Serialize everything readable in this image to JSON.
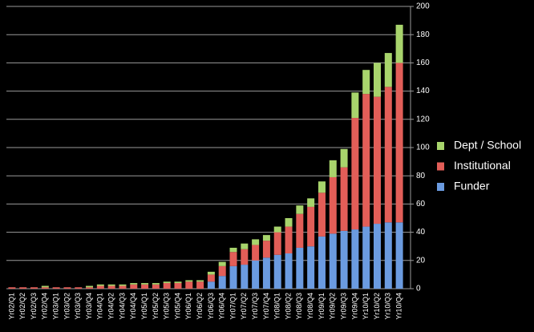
{
  "chart_data": {
    "type": "stacked_bar",
    "categories": [
      "Yr02/Q1",
      "Yr02/Q2",
      "Yr02/Q3",
      "Yr02/Q4",
      "Yr03/Q1",
      "Yr03/Q2",
      "Yr03/Q3",
      "Yr03/Q4",
      "Yr04/Q1",
      "Yr04/Q2",
      "Yr04/Q3",
      "Yr04/Q4",
      "Yr05/Q1",
      "Yr05/Q2",
      "Yr05/Q3",
      "Yr05/Q4",
      "Yr06/Q1",
      "Yr06/Q2",
      "Yr06/Q3",
      "Yr06/Q4",
      "Yr07/Q1",
      "Yr07/Q2",
      "Yr07/Q3",
      "Yr07/Q4",
      "Yr08/Q1",
      "Yr08/Q2",
      "Yr08/Q3",
      "Yr08/Q4",
      "Yr09/Q1",
      "Yr09/Q2",
      "Yr09/Q3",
      "Yr09/Q4",
      "Yr10/Q1",
      "Yr10/Q2",
      "Yr10/Q3",
      "Yr10/Q4"
    ],
    "series": [
      {
        "name": "Funder",
        "color": "#6b9be0",
        "values": [
          0,
          0,
          0,
          0,
          0,
          0,
          0,
          0,
          0,
          0,
          0,
          0,
          0,
          0,
          0,
          0,
          0,
          0,
          5,
          9,
          16,
          17,
          20,
          22,
          24,
          25,
          29,
          30,
          37,
          39,
          41,
          42,
          44,
          46,
          47,
          47
        ]
      },
      {
        "name": "Institutional",
        "color": "#e25e58",
        "values": [
          1,
          1,
          1,
          1,
          1,
          1,
          1,
          1,
          2,
          2,
          2,
          3,
          3,
          3,
          4,
          4,
          5,
          5,
          5,
          7,
          10,
          11,
          11,
          12,
          16,
          19,
          24,
          28,
          31,
          40,
          45,
          79,
          94,
          90,
          96,
          113
        ]
      },
      {
        "name": "Dept / School",
        "color": "#a8d46c",
        "values": [
          0,
          0,
          0,
          1,
          0,
          0,
          0,
          1,
          1,
          1,
          1,
          1,
          1,
          1,
          1,
          1,
          1,
          1,
          2,
          3,
          3,
          4,
          4,
          4,
          4,
          6,
          6,
          6,
          8,
          12,
          13,
          18,
          17,
          24,
          24,
          27
        ]
      }
    ],
    "ylim": [
      0,
      200
    ],
    "yticks": [
      0,
      20,
      40,
      60,
      80,
      100,
      120,
      140,
      160,
      180,
      200
    ],
    "grid": true,
    "legend": "right"
  }
}
